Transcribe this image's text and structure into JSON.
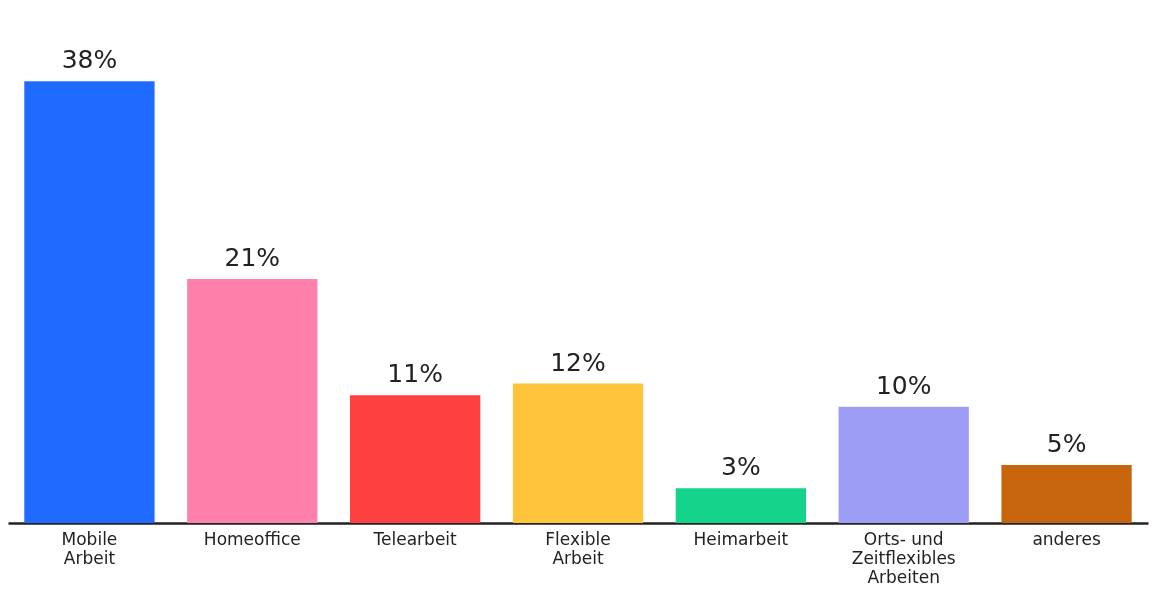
{
  "chart_data": {
    "type": "bar",
    "categories": [
      "Mobile Arbeit",
      "Homeoffice",
      "Telearbeit",
      "Flexible Arbeit",
      "Heimarbeit",
      "Orts- und Zeitflexibles Arbeiten",
      "anderes"
    ],
    "values": [
      38,
      21,
      11,
      12,
      3,
      10,
      5
    ],
    "colors": [
      "#1f6bff",
      "#ff80aa",
      "#ff4040",
      "#ffc43a",
      "#13d48a",
      "#9d9df5",
      "#c8650c"
    ],
    "value_labels": [
      "38%",
      "21%",
      "11%",
      "12%",
      "3%",
      "10%",
      "5%"
    ]
  }
}
